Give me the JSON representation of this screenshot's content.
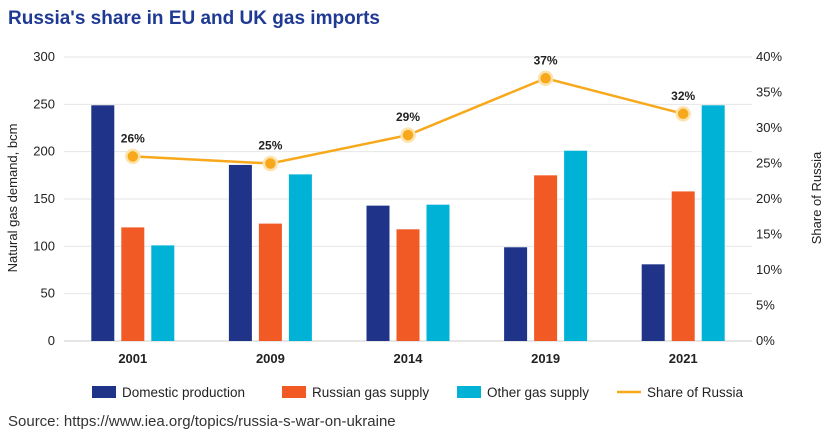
{
  "title": "Russia's share in EU and UK gas imports",
  "source": "Source: https://www.iea.org/topics/russia-s-war-on-ukraine",
  "colors": {
    "domestic": "#1f3489",
    "russian": "#f15a24",
    "other": "#00b2d6",
    "share": "#f7a81b",
    "grid": "#e6e6e6"
  },
  "chart_data": {
    "type": "bar",
    "categories": [
      "2001",
      "2009",
      "2014",
      "2019",
      "2021"
    ],
    "series": [
      {
        "name": "Domestic production",
        "values": [
          249,
          186,
          143,
          99,
          81
        ]
      },
      {
        "name": "Russian gas supply",
        "values": [
          120,
          124,
          118,
          175,
          158
        ]
      },
      {
        "name": "Other gas supply",
        "values": [
          101,
          176,
          144,
          201,
          249
        ]
      }
    ],
    "line_series": {
      "name": "Share of Russia",
      "values": [
        26,
        25,
        29,
        37,
        32
      ],
      "labels": [
        "26%",
        "25%",
        "29%",
        "37%",
        "32%"
      ],
      "axis": "right"
    },
    "ylabel": "Natural gas demand, bcm",
    "y2label": "Share of Russia",
    "ylim": [
      0,
      300
    ],
    "y2lim": [
      0,
      40
    ],
    "yticks": [
      "0",
      "50",
      "100",
      "150",
      "200",
      "250",
      "300"
    ],
    "y2ticks": [
      "0%",
      "5%",
      "10%",
      "15%",
      "20%",
      "25%",
      "30%",
      "35%",
      "40%"
    ],
    "grid": true,
    "legend_position": "bottom"
  }
}
